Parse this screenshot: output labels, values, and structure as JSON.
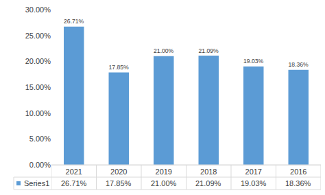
{
  "chart_data": {
    "type": "bar",
    "categories": [
      "2021",
      "2020",
      "2019",
      "2018",
      "2017",
      "2016"
    ],
    "series": [
      {
        "name": "Series1",
        "color": "#5b9bd5",
        "values": [
          26.71,
          17.85,
          21.0,
          21.09,
          19.03,
          18.36
        ],
        "value_labels": [
          "26.71%",
          "17.85%",
          "21.00%",
          "21.09%",
          "19.03%",
          "18.36%"
        ]
      }
    ],
    "ylim": [
      0,
      30
    ],
    "yticks": [
      {
        "value": 0,
        "label": "0.00%"
      },
      {
        "value": 5,
        "label": "5.00%"
      },
      {
        "value": 10,
        "label": "10.00%"
      },
      {
        "value": 15,
        "label": "15.00%"
      },
      {
        "value": 20,
        "label": "20.00%"
      },
      {
        "value": 25,
        "label": "25.00%"
      },
      {
        "value": 30,
        "label": "30.00%"
      }
    ],
    "grid": false,
    "data_labels": true
  }
}
